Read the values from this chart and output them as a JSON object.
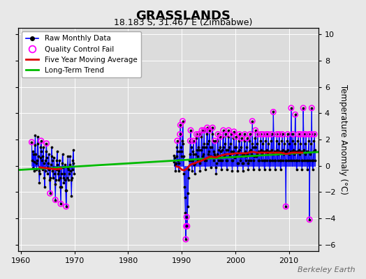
{
  "title": "GRASSLANDS",
  "subtitle": "18.183 S, 31.467 E (Zimbabwe)",
  "ylabel": "Temperature Anomaly (°C)",
  "watermark": "Berkeley Earth",
  "xlim": [
    1959.5,
    2015.5
  ],
  "ylim": [
    -6.5,
    10.5
  ],
  "ytick_vals": [
    -6,
    -4,
    -2,
    0,
    2,
    4,
    6,
    8,
    10
  ],
  "xtick_vals": [
    1960,
    1970,
    1980,
    1990,
    2000,
    2010
  ],
  "fig_bg": "#e8e8e8",
  "plot_bg": "#dcdcdc",
  "grid_color": "#ffffff",
  "raw_line_color": "#0000ff",
  "raw_dot_color": "#000000",
  "qc_color": "#ff00ff",
  "ma_color": "#dd0000",
  "trend_color": "#00bb00",
  "trend_x": [
    1959.5,
    2015.5
  ],
  "trend_y": [
    -0.32,
    1.05
  ],
  "raw_data": [
    [
      1962.0,
      1.8
    ],
    [
      1962.083,
      0.4
    ],
    [
      1962.167,
      1.1
    ],
    [
      1962.25,
      -0.2
    ],
    [
      1962.333,
      0.9
    ],
    [
      1962.417,
      -0.4
    ],
    [
      1962.5,
      0.3
    ],
    [
      1962.583,
      1.6
    ],
    [
      1962.667,
      2.3
    ],
    [
      1962.75,
      0.9
    ],
    [
      1962.833,
      0.2
    ],
    [
      1962.917,
      -0.3
    ],
    [
      1963.0,
      0.4
    ],
    [
      1963.083,
      1.7
    ],
    [
      1963.167,
      2.2
    ],
    [
      1963.25,
      0.7
    ],
    [
      1963.333,
      -0.4
    ],
    [
      1963.417,
      -1.3
    ],
    [
      1963.5,
      -0.6
    ],
    [
      1963.583,
      0.6
    ],
    [
      1963.667,
      1.4
    ],
    [
      1963.75,
      1.9
    ],
    [
      1963.833,
      1.1
    ],
    [
      1963.917,
      0.4
    ],
    [
      1964.0,
      -0.3
    ],
    [
      1964.083,
      0.7
    ],
    [
      1964.167,
      1.4
    ],
    [
      1964.25,
      0.2
    ],
    [
      1964.333,
      -0.9
    ],
    [
      1964.417,
      -1.6
    ],
    [
      1964.5,
      -0.4
    ],
    [
      1964.583,
      0.4
    ],
    [
      1964.667,
      1.1
    ],
    [
      1964.75,
      1.7
    ],
    [
      1964.833,
      0.6
    ],
    [
      1964.917,
      -0.1
    ],
    [
      1965.0,
      -0.6
    ],
    [
      1965.083,
      0.2
    ],
    [
      1965.167,
      0.9
    ],
    [
      1965.25,
      -0.3
    ],
    [
      1965.333,
      -1.1
    ],
    [
      1965.417,
      -2.1
    ],
    [
      1965.5,
      -0.9
    ],
    [
      1965.583,
      0.1
    ],
    [
      1965.667,
      0.7
    ],
    [
      1965.75,
      1.4
    ],
    [
      1965.833,
      0.4
    ],
    [
      1965.917,
      -0.4
    ],
    [
      1966.0,
      -0.9
    ],
    [
      1966.083,
      -0.1
    ],
    [
      1966.167,
      0.6
    ],
    [
      1966.25,
      -0.6
    ],
    [
      1966.333,
      -1.4
    ],
    [
      1966.417,
      -2.6
    ],
    [
      1966.5,
      -1.1
    ],
    [
      1966.583,
      -0.3
    ],
    [
      1966.667,
      0.4
    ],
    [
      1966.75,
      1.1
    ],
    [
      1966.833,
      0.1
    ],
    [
      1966.917,
      -0.6
    ],
    [
      1967.0,
      -1.1
    ],
    [
      1967.083,
      -0.4
    ],
    [
      1967.167,
      0.4
    ],
    [
      1967.25,
      -0.9
    ],
    [
      1967.333,
      -1.6
    ],
    [
      1967.417,
      -2.9
    ],
    [
      1967.5,
      -1.6
    ],
    [
      1967.583,
      -0.6
    ],
    [
      1967.667,
      0.2
    ],
    [
      1967.75,
      0.9
    ],
    [
      1967.833,
      -0.1
    ],
    [
      1967.917,
      -0.9
    ],
    [
      1968.0,
      -1.3
    ],
    [
      1968.083,
      -0.6
    ],
    [
      1968.167,
      0.1
    ],
    [
      1968.25,
      -1.1
    ],
    [
      1968.333,
      -1.9
    ],
    [
      1968.417,
      -3.1
    ],
    [
      1968.5,
      -1.9
    ],
    [
      1968.583,
      -0.9
    ],
    [
      1968.667,
      -0.1
    ],
    [
      1968.75,
      0.7
    ],
    [
      1968.833,
      -0.3
    ],
    [
      1968.917,
      -1.1
    ],
    [
      1969.0,
      -0.6
    ],
    [
      1969.083,
      0.1
    ],
    [
      1969.167,
      0.7
    ],
    [
      1969.25,
      -0.4
    ],
    [
      1969.333,
      -1.1
    ],
    [
      1969.417,
      -2.3
    ],
    [
      1969.5,
      -0.9
    ],
    [
      1969.583,
      -0.3
    ],
    [
      1969.667,
      0.4
    ],
    [
      1969.75,
      1.2
    ],
    [
      1969.833,
      0.2
    ],
    [
      1969.917,
      -0.6
    ],
    [
      1988.5,
      0.3
    ],
    [
      1988.583,
      0.8
    ],
    [
      1988.667,
      0.6
    ],
    [
      1988.75,
      0.1
    ],
    [
      1988.833,
      -0.4
    ],
    [
      1988.917,
      0.2
    ],
    [
      1989.0,
      0.7
    ],
    [
      1989.083,
      1.4
    ],
    [
      1989.167,
      1.9
    ],
    [
      1989.25,
      1.1
    ],
    [
      1989.333,
      0.4
    ],
    [
      1989.417,
      -0.4
    ],
    [
      1989.5,
      0.2
    ],
    [
      1989.583,
      1.1
    ],
    [
      1989.667,
      2.4
    ],
    [
      1989.75,
      3.1
    ],
    [
      1989.833,
      1.4
    ],
    [
      1989.917,
      0.7
    ],
    [
      1990.0,
      1.1
    ],
    [
      1990.083,
      1.9
    ],
    [
      1990.167,
      3.4
    ],
    [
      1990.25,
      1.7
    ],
    [
      1990.333,
      0.7
    ],
    [
      1990.417,
      -0.6
    ],
    [
      1990.5,
      -1.6
    ],
    [
      1990.583,
      -2.4
    ],
    [
      1990.667,
      -3.6
    ],
    [
      1990.75,
      -5.6
    ],
    [
      1990.833,
      -4.6
    ],
    [
      1990.917,
      -3.9
    ],
    [
      1991.0,
      -4.6
    ],
    [
      1991.083,
      -3.1
    ],
    [
      1991.167,
      -2.1
    ],
    [
      1991.25,
      -0.9
    ],
    [
      1991.333,
      -0.3
    ],
    [
      1991.417,
      0.4
    ],
    [
      1991.5,
      0.9
    ],
    [
      1991.583,
      1.9
    ],
    [
      1991.667,
      2.7
    ],
    [
      1991.75,
      1.4
    ],
    [
      1991.833,
      0.4
    ],
    [
      1991.917,
      -0.4
    ],
    [
      1992.0,
      0.4
    ],
    [
      1992.083,
      1.1
    ],
    [
      1992.167,
      1.9
    ],
    [
      1992.25,
      0.9
    ],
    [
      1992.333,
      0.1
    ],
    [
      1992.417,
      -0.6
    ],
    [
      1992.5,
      0.2
    ],
    [
      1992.583,
      0.9
    ],
    [
      1992.667,
      2.1
    ],
    [
      1992.75,
      2.4
    ],
    [
      1992.833,
      1.2
    ],
    [
      1992.917,
      0.4
    ],
    [
      1993.0,
      0.7
    ],
    [
      1993.083,
      1.4
    ],
    [
      1993.167,
      2.4
    ],
    [
      1993.25,
      1.2
    ],
    [
      1993.333,
      0.2
    ],
    [
      1993.417,
      -0.4
    ],
    [
      1993.5,
      0.4
    ],
    [
      1993.583,
      1.2
    ],
    [
      1993.667,
      2.2
    ],
    [
      1993.75,
      2.7
    ],
    [
      1993.833,
      1.4
    ],
    [
      1993.917,
      0.7
    ],
    [
      1994.0,
      0.9
    ],
    [
      1994.083,
      1.7
    ],
    [
      1994.167,
      2.7
    ],
    [
      1994.25,
      1.4
    ],
    [
      1994.333,
      0.4
    ],
    [
      1994.417,
      -0.3
    ],
    [
      1994.5,
      0.4
    ],
    [
      1994.583,
      1.4
    ],
    [
      1994.667,
      2.4
    ],
    [
      1994.75,
      2.9
    ],
    [
      1994.833,
      1.7
    ],
    [
      1994.917,
      0.9
    ],
    [
      1995.0,
      1.1
    ],
    [
      1995.083,
      1.9
    ],
    [
      1995.167,
      2.7
    ],
    [
      1995.25,
      1.4
    ],
    [
      1995.333,
      0.7
    ],
    [
      1995.417,
      -0.1
    ],
    [
      1995.5,
      0.7
    ],
    [
      1995.583,
      1.4
    ],
    [
      1995.667,
      2.4
    ],
    [
      1995.75,
      2.9
    ],
    [
      1995.833,
      1.9
    ],
    [
      1995.917,
      1.1
    ],
    [
      1996.0,
      0.4
    ],
    [
      1996.083,
      0.9
    ],
    [
      1996.167,
      1.9
    ],
    [
      1996.25,
      0.7
    ],
    [
      1996.333,
      -0.1
    ],
    [
      1996.417,
      -0.6
    ],
    [
      1996.5,
      0.2
    ],
    [
      1996.583,
      0.9
    ],
    [
      1996.667,
      1.9
    ],
    [
      1996.75,
      2.4
    ],
    [
      1996.833,
      1.2
    ],
    [
      1996.917,
      0.4
    ],
    [
      1997.0,
      0.7
    ],
    [
      1997.083,
      1.4
    ],
    [
      1997.167,
      2.2
    ],
    [
      1997.25,
      1.1
    ],
    [
      1997.333,
      0.4
    ],
    [
      1997.417,
      -0.3
    ],
    [
      1997.5,
      0.4
    ],
    [
      1997.583,
      1.2
    ],
    [
      1997.667,
      2.2
    ],
    [
      1997.75,
      2.7
    ],
    [
      1997.833,
      1.4
    ],
    [
      1997.917,
      0.7
    ],
    [
      1998.0,
      0.9
    ],
    [
      1998.083,
      1.7
    ],
    [
      1998.167,
      2.4
    ],
    [
      1998.25,
      1.2
    ],
    [
      1998.333,
      0.4
    ],
    [
      1998.417,
      -0.3
    ],
    [
      1998.5,
      0.4
    ],
    [
      1998.583,
      1.2
    ],
    [
      1998.667,
      2.2
    ],
    [
      1998.75,
      2.7
    ],
    [
      1998.833,
      1.4
    ],
    [
      1998.917,
      0.7
    ],
    [
      1999.0,
      0.9
    ],
    [
      1999.083,
      1.7
    ],
    [
      1999.167,
      2.4
    ],
    [
      1999.25,
      1.1
    ],
    [
      1999.333,
      0.4
    ],
    [
      1999.417,
      -0.4
    ],
    [
      1999.5,
      0.4
    ],
    [
      1999.583,
      1.1
    ],
    [
      1999.667,
      2.1
    ],
    [
      1999.75,
      2.6
    ],
    [
      1999.833,
      1.4
    ],
    [
      1999.917,
      0.6
    ],
    [
      2000.0,
      0.7
    ],
    [
      2000.083,
      1.4
    ],
    [
      2000.167,
      2.2
    ],
    [
      2000.25,
      0.9
    ],
    [
      2000.333,
      0.2
    ],
    [
      2000.417,
      -0.4
    ],
    [
      2000.5,
      0.2
    ],
    [
      2000.583,
      1.1
    ],
    [
      2000.667,
      1.9
    ],
    [
      2000.75,
      2.4
    ],
    [
      2000.833,
      1.2
    ],
    [
      2000.917,
      0.4
    ],
    [
      2001.0,
      0.7
    ],
    [
      2001.083,
      1.4
    ],
    [
      2001.167,
      2.1
    ],
    [
      2001.25,
      0.9
    ],
    [
      2001.333,
      0.2
    ],
    [
      2001.417,
      -0.4
    ],
    [
      2001.5,
      0.2
    ],
    [
      2001.583,
      0.9
    ],
    [
      2001.667,
      1.9
    ],
    [
      2001.75,
      2.4
    ],
    [
      2001.833,
      1.1
    ],
    [
      2001.917,
      0.4
    ],
    [
      2002.0,
      0.7
    ],
    [
      2002.083,
      1.4
    ],
    [
      2002.167,
      2.1
    ],
    [
      2002.25,
      0.9
    ],
    [
      2002.333,
      0.2
    ],
    [
      2002.417,
      -0.3
    ],
    [
      2002.5,
      0.4
    ],
    [
      2002.583,
      1.1
    ],
    [
      2002.667,
      1.9
    ],
    [
      2002.75,
      2.4
    ],
    [
      2002.833,
      1.2
    ],
    [
      2002.917,
      0.4
    ],
    [
      2003.0,
      0.9
    ],
    [
      2003.083,
      1.7
    ],
    [
      2003.167,
      3.4
    ],
    [
      2003.25,
      1.4
    ],
    [
      2003.333,
      0.4
    ],
    [
      2003.417,
      -0.3
    ],
    [
      2003.5,
      0.7
    ],
    [
      2003.583,
      1.4
    ],
    [
      2003.667,
      2.1
    ],
    [
      2003.75,
      2.7
    ],
    [
      2003.833,
      1.4
    ],
    [
      2003.917,
      0.7
    ],
    [
      2004.0,
      0.9
    ],
    [
      2004.083,
      1.7
    ],
    [
      2004.167,
      2.4
    ],
    [
      2004.25,
      1.1
    ],
    [
      2004.333,
      0.4
    ],
    [
      2004.417,
      -0.3
    ],
    [
      2004.5,
      0.4
    ],
    [
      2004.583,
      1.1
    ],
    [
      2004.667,
      1.9
    ],
    [
      2004.75,
      2.4
    ],
    [
      2004.833,
      1.2
    ],
    [
      2004.917,
      0.4
    ],
    [
      2005.0,
      0.9
    ],
    [
      2005.083,
      1.7
    ],
    [
      2005.167,
      2.4
    ],
    [
      2005.25,
      1.1
    ],
    [
      2005.333,
      0.4
    ],
    [
      2005.417,
      -0.3
    ],
    [
      2005.5,
      0.4
    ],
    [
      2005.583,
      1.1
    ],
    [
      2005.667,
      1.9
    ],
    [
      2005.75,
      2.4
    ],
    [
      2005.833,
      1.2
    ],
    [
      2005.917,
      0.4
    ],
    [
      2006.0,
      0.9
    ],
    [
      2006.083,
      1.7
    ],
    [
      2006.167,
      2.4
    ],
    [
      2006.25,
      1.1
    ],
    [
      2006.333,
      0.4
    ],
    [
      2006.417,
      -0.3
    ],
    [
      2006.5,
      0.4
    ],
    [
      2006.583,
      1.1
    ],
    [
      2006.667,
      1.9
    ],
    [
      2006.75,
      2.4
    ],
    [
      2006.833,
      1.2
    ],
    [
      2006.917,
      0.4
    ],
    [
      2007.0,
      0.9
    ],
    [
      2007.083,
      4.1
    ],
    [
      2007.167,
      2.4
    ],
    [
      2007.25,
      1.1
    ],
    [
      2007.333,
      0.4
    ],
    [
      2007.417,
      -0.3
    ],
    [
      2007.5,
      0.4
    ],
    [
      2007.583,
      1.1
    ],
    [
      2007.667,
      1.9
    ],
    [
      2007.75,
      2.4
    ],
    [
      2007.833,
      1.2
    ],
    [
      2007.917,
      0.4
    ],
    [
      2008.0,
      0.9
    ],
    [
      2008.083,
      1.7
    ],
    [
      2008.167,
      2.4
    ],
    [
      2008.25,
      1.1
    ],
    [
      2008.333,
      0.4
    ],
    [
      2008.417,
      -0.3
    ],
    [
      2008.5,
      0.4
    ],
    [
      2008.583,
      1.1
    ],
    [
      2008.667,
      1.9
    ],
    [
      2008.75,
      2.4
    ],
    [
      2008.833,
      1.2
    ],
    [
      2008.917,
      0.4
    ],
    [
      2009.0,
      0.9
    ],
    [
      2009.083,
      1.7
    ],
    [
      2009.167,
      2.4
    ],
    [
      2009.25,
      1.1
    ],
    [
      2009.333,
      0.4
    ],
    [
      2009.417,
      -3.1
    ],
    [
      2009.5,
      0.4
    ],
    [
      2009.583,
      1.1
    ],
    [
      2009.667,
      1.9
    ],
    [
      2009.75,
      2.4
    ],
    [
      2009.833,
      1.2
    ],
    [
      2009.917,
      0.4
    ],
    [
      2010.0,
      0.9
    ],
    [
      2010.083,
      1.7
    ],
    [
      2010.167,
      2.4
    ],
    [
      2010.25,
      1.1
    ],
    [
      2010.333,
      0.4
    ],
    [
      2010.417,
      4.4
    ],
    [
      2010.5,
      0.4
    ],
    [
      2010.583,
      1.1
    ],
    [
      2010.667,
      1.9
    ],
    [
      2010.75,
      2.4
    ],
    [
      2010.833,
      1.2
    ],
    [
      2010.917,
      0.4
    ],
    [
      2011.0,
      0.9
    ],
    [
      2011.083,
      1.7
    ],
    [
      2011.167,
      3.9
    ],
    [
      2011.25,
      1.1
    ],
    [
      2011.333,
      0.4
    ],
    [
      2011.417,
      -0.3
    ],
    [
      2011.5,
      0.4
    ],
    [
      2011.583,
      1.1
    ],
    [
      2011.667,
      1.9
    ],
    [
      2011.75,
      2.4
    ],
    [
      2011.833,
      1.2
    ],
    [
      2011.917,
      0.4
    ],
    [
      2012.0,
      0.9
    ],
    [
      2012.083,
      1.7
    ],
    [
      2012.167,
      2.4
    ],
    [
      2012.25,
      1.1
    ],
    [
      2012.333,
      0.4
    ],
    [
      2012.417,
      -0.3
    ],
    [
      2012.5,
      0.4
    ],
    [
      2012.583,
      1.1
    ],
    [
      2012.667,
      4.4
    ],
    [
      2012.75,
      2.4
    ],
    [
      2012.833,
      1.2
    ],
    [
      2012.917,
      0.4
    ],
    [
      2013.0,
      0.9
    ],
    [
      2013.083,
      1.7
    ],
    [
      2013.167,
      2.4
    ],
    [
      2013.25,
      1.1
    ],
    [
      2013.333,
      0.4
    ],
    [
      2013.417,
      -0.3
    ],
    [
      2013.5,
      0.4
    ],
    [
      2013.583,
      1.1
    ],
    [
      2013.667,
      1.9
    ],
    [
      2013.75,
      2.4
    ],
    [
      2013.833,
      -4.1
    ],
    [
      2013.917,
      0.4
    ],
    [
      2014.0,
      0.9
    ],
    [
      2014.083,
      1.7
    ],
    [
      2014.167,
      2.4
    ],
    [
      2014.25,
      4.4
    ],
    [
      2014.333,
      0.4
    ],
    [
      2014.417,
      -0.3
    ],
    [
      2014.5,
      0.4
    ],
    [
      2014.583,
      1.1
    ],
    [
      2014.667,
      1.9
    ],
    [
      2014.75,
      2.4
    ],
    [
      2014.833,
      1.2
    ],
    [
      2014.917,
      0.4
    ]
  ],
  "qc_fail_indices_x": [
    1962.0,
    1963.75,
    1964.75,
    1965.417,
    1966.417,
    1967.417,
    1968.417,
    1989.167,
    1989.667,
    1989.75,
    1990.167,
    1990.75,
    1990.833,
    1990.917,
    1991.0,
    1991.583,
    1991.667,
    1992.167,
    1992.75,
    1993.167,
    1993.75,
    1994.167,
    1994.75,
    1995.167,
    1995.75,
    1996.167,
    1996.75,
    1997.167,
    1997.75,
    1998.167,
    1998.75,
    1999.167,
    1999.75,
    2000.167,
    2000.75,
    2001.167,
    2001.75,
    2002.167,
    2002.75,
    2003.167,
    2003.75,
    2004.167,
    2004.75,
    2005.167,
    2005.75,
    2006.167,
    2006.75,
    2007.083,
    2007.75,
    2008.167,
    2008.75,
    2009.417,
    2009.75,
    2010.417,
    2010.75,
    2011.167,
    2011.75,
    2012.167,
    2012.667,
    2012.75,
    2013.167,
    2013.75,
    2013.833,
    2014.167,
    2014.25,
    2014.75
  ],
  "ma_data": [
    [
      1963.5,
      -0.12
    ],
    [
      1964.5,
      -0.17
    ],
    [
      1965.5,
      -0.22
    ],
    [
      1966.5,
      -0.27
    ],
    [
      1967.5,
      -0.22
    ],
    [
      1989.0,
      -0.05
    ],
    [
      1989.5,
      -0.1
    ],
    [
      1990.0,
      -0.3
    ],
    [
      1990.5,
      -0.35
    ],
    [
      1991.0,
      -0.2
    ],
    [
      1991.5,
      0.05
    ],
    [
      1992.0,
      0.15
    ],
    [
      1992.5,
      0.2
    ],
    [
      1993.0,
      0.3
    ],
    [
      1993.5,
      0.35
    ],
    [
      1994.0,
      0.45
    ],
    [
      1994.5,
      0.55
    ],
    [
      1995.0,
      0.65
    ],
    [
      1995.5,
      0.7
    ],
    [
      1996.0,
      0.65
    ],
    [
      1996.5,
      0.65
    ],
    [
      1997.0,
      0.75
    ],
    [
      1997.5,
      0.8
    ],
    [
      1998.0,
      0.85
    ],
    [
      1998.5,
      0.9
    ],
    [
      1999.0,
      0.9
    ],
    [
      1999.5,
      0.9
    ],
    [
      2000.0,
      0.95
    ],
    [
      2000.5,
      0.95
    ],
    [
      2001.0,
      0.95
    ],
    [
      2001.5,
      0.95
    ],
    [
      2002.0,
      0.95
    ],
    [
      2002.5,
      1.0
    ],
    [
      2003.0,
      1.05
    ],
    [
      2003.5,
      1.05
    ],
    [
      2004.0,
      1.0
    ],
    [
      2004.5,
      1.0
    ],
    [
      2005.0,
      1.0
    ],
    [
      2005.5,
      1.0
    ],
    [
      2006.0,
      1.0
    ],
    [
      2006.5,
      1.0
    ],
    [
      2007.0,
      1.0
    ],
    [
      2007.5,
      1.0
    ],
    [
      2008.0,
      1.0
    ],
    [
      2008.5,
      1.0
    ],
    [
      2009.0,
      0.95
    ],
    [
      2009.5,
      0.9
    ],
    [
      2010.0,
      0.95
    ],
    [
      2010.5,
      1.0
    ],
    [
      2011.0,
      1.0
    ],
    [
      2011.5,
      1.0
    ],
    [
      2012.0,
      1.0
    ],
    [
      2012.5,
      1.0
    ]
  ]
}
